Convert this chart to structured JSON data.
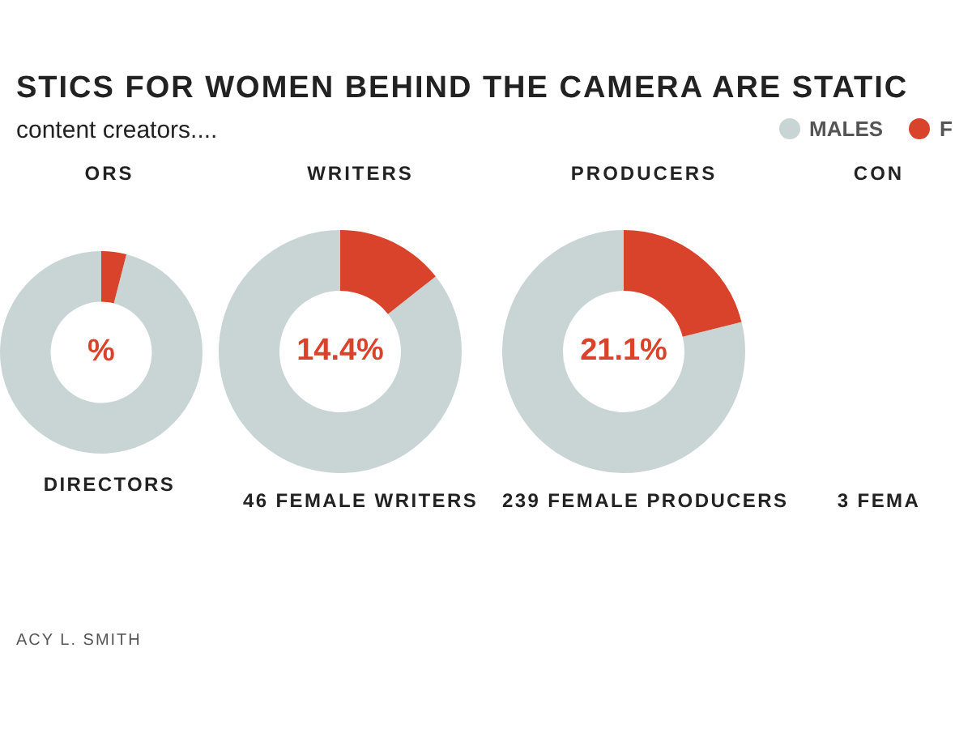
{
  "chart_data": [
    {
      "type": "donut",
      "title": "STICS FOR WOMEN BEHIND THE CAMERA ARE STATIC",
      "subtitle": "content creators....",
      "xlabel": "ORS",
      "categories": [
        "MALES",
        "F"
      ],
      "colors": [
        "#c9d5d5",
        "#d9432b"
      ],
      "values": [
        96,
        4
      ],
      "value_labels": [
        null,
        "%"
      ],
      "legend": "top right",
      "annotations": [
        "DIRECTORS",
        "ACY L. SMITH"
      ]
    },
    {
      "type": "donut",
      "xlabel": "WRITERS",
      "colors": [
        "#c9d5d5",
        "#d9432b"
      ],
      "values": [
        85.6,
        14.4
      ],
      "value_labels": [
        null,
        "14.4%"
      ],
      "annotations": [
        "46 FEMALE WRITERS"
      ]
    },
    {
      "type": "donut",
      "xlabel": "PRODUCERS",
      "colors": [
        "#c9d5d5",
        "#d9432b"
      ],
      "values": [
        78.9,
        21.1
      ],
      "value_labels": [
        null,
        "21.1%"
      ],
      "annotations": [
        "239 FEMALE PRODUCERS"
      ]
    },
    {
      "type": "other",
      "xlabel": "CON",
      "annotations": [
        "3 FEMA"
      ]
    }
  ]
}
